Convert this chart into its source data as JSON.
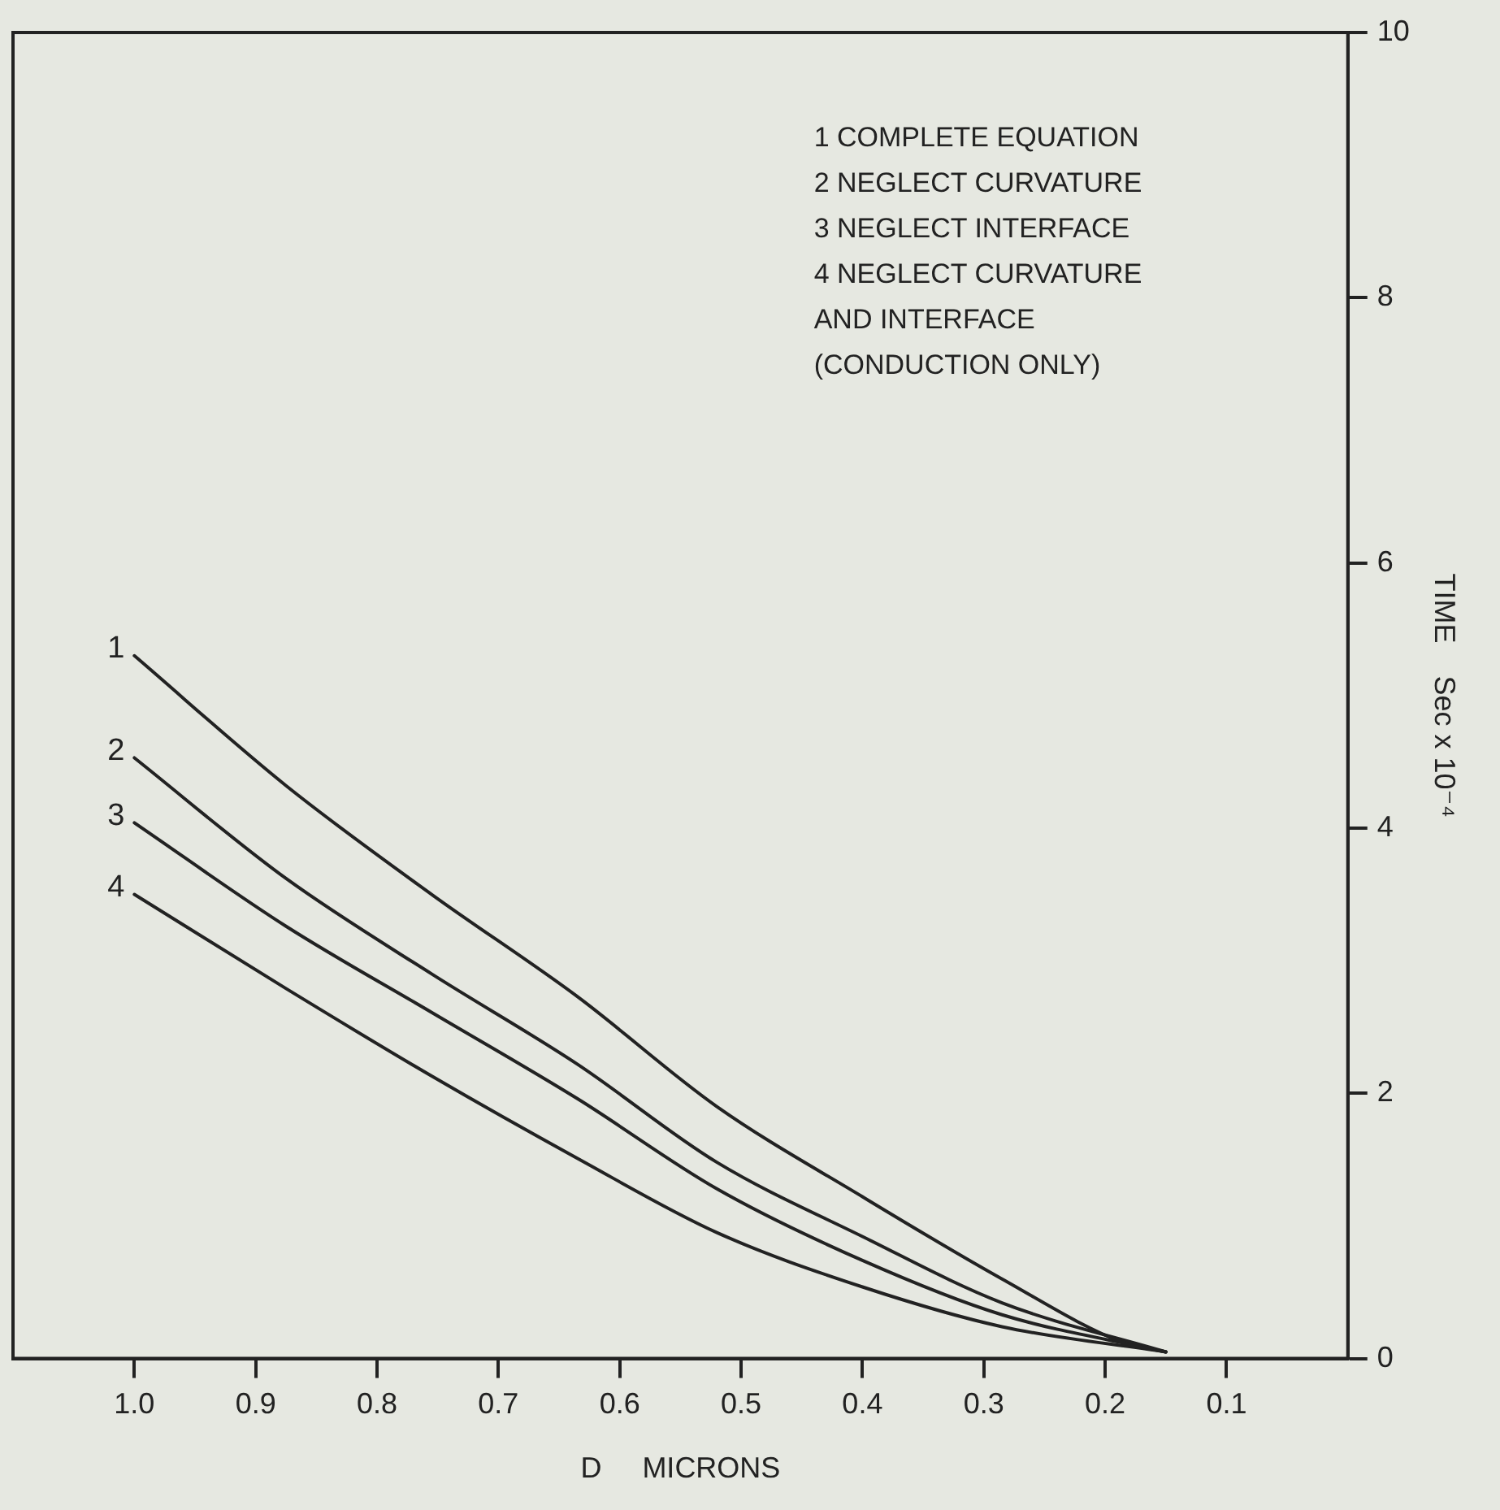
{
  "chart_data": {
    "type": "line",
    "xlabel": "D     MICRONS",
    "ylabel": "TIME    Sec x 10⁻⁴",
    "xlim": [
      1.1,
      0
    ],
    "xticks": [
      {
        "value": 1,
        "label": "1.0"
      },
      0.9,
      0.8,
      0.7,
      0.6,
      0.5,
      0.4,
      0.3,
      0.2,
      0.1
    ],
    "ylim": [
      0,
      10
    ],
    "yticks": [
      0,
      2,
      4,
      6,
      8,
      10
    ],
    "grid": false,
    "legend": false,
    "marker": "none",
    "line_style": "solid",
    "series": [
      {
        "name": "1",
        "color": "#222222",
        "x": [
          0.15,
          0.185,
          0.285,
          0.4,
          0.52,
          0.635,
          0.755,
          0.875,
          1.0
        ],
        "values": [
          0.05,
          0.12,
          0.6,
          1.22,
          1.9,
          2.73,
          3.5,
          4.32,
          5.3
        ]
      },
      {
        "name": "2",
        "color": "#222222",
        "x": [
          0.15,
          0.285,
          0.4,
          0.52,
          0.635,
          0.755,
          0.875,
          1.0
        ],
        "values": [
          0.05,
          0.42,
          0.92,
          1.48,
          2.22,
          2.9,
          3.62,
          4.53
        ]
      },
      {
        "name": "3",
        "color": "#222222",
        "x": [
          0.15,
          0.285,
          0.4,
          0.52,
          0.635,
          0.755,
          0.875,
          1.0
        ],
        "values": [
          0.05,
          0.33,
          0.74,
          1.28,
          1.96,
          2.61,
          3.26,
          4.04
        ]
      },
      {
        "name": "4",
        "color": "#222222",
        "x": [
          0.15,
          0.285,
          0.4,
          0.52,
          0.635,
          0.755,
          0.875,
          1.0
        ],
        "values": [
          0.05,
          0.24,
          0.54,
          0.95,
          1.51,
          2.13,
          2.79,
          3.5
        ]
      }
    ],
    "annotations": [
      "1 COMPLETE EQUATION",
      "2 NEGLECT CURVATURE",
      "3 NEGLECT INTERFACE",
      "4 NEGLECT CURVATURE",
      "AND INTERFACE",
      "(CONDUCTION ONLY)"
    ]
  }
}
